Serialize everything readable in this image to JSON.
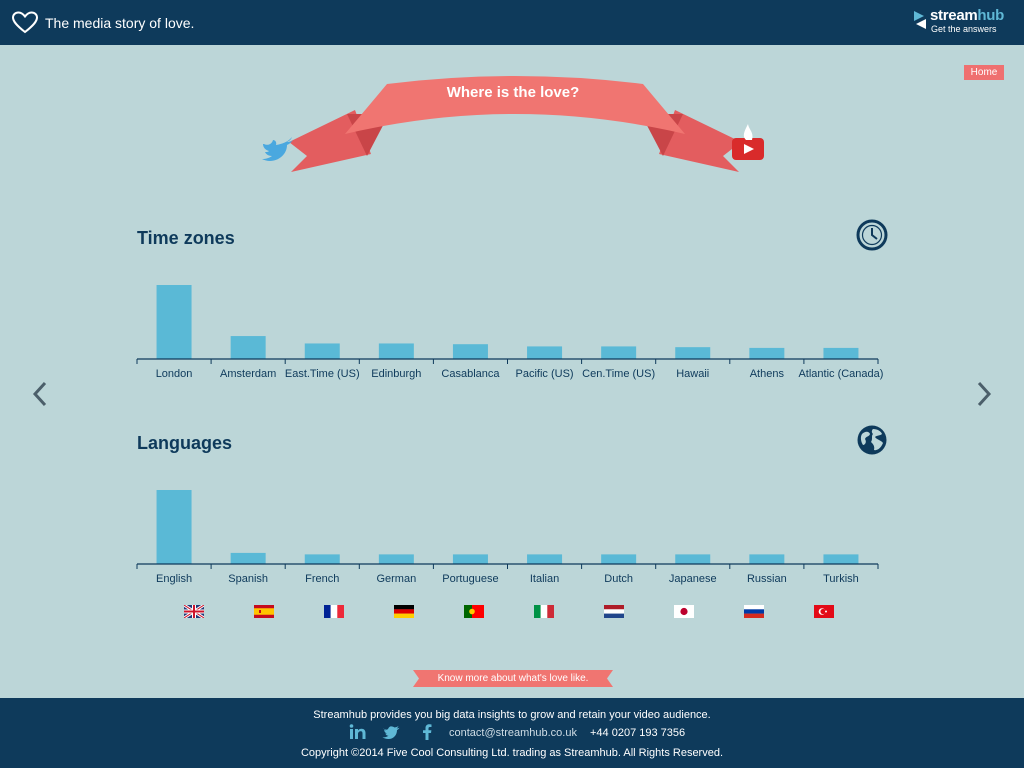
{
  "header": {
    "tagline": "The media story of love.",
    "brand_name_a": "stream",
    "brand_name_b": "hub",
    "brand_subtitle": "Get the answers"
  },
  "home_label": "Home",
  "ribbon_title": "Where is the love?",
  "time_zones": {
    "title": "Time zones",
    "icon": "clock-icon",
    "chart_data": {
      "type": "bar",
      "categories": [
        "London",
        "Amsterdam",
        "East.Time (US)",
        "Edinburgh",
        "Casablanca",
        "Pacific (US)",
        "Cen.Time (US)",
        "Hawaii",
        "Athens",
        "Atlantic (Canada)"
      ],
      "values": [
        100,
        31,
        21,
        21,
        20,
        17,
        17,
        16,
        15,
        15
      ],
      "bar_color": "#5ab9d6",
      "ylim": [
        0,
        100
      ]
    }
  },
  "languages": {
    "title": "Languages",
    "icon": "globe-icon",
    "chart_data": {
      "type": "bar",
      "categories": [
        "English",
        "Spanish",
        "French",
        "German",
        "Portuguese",
        "Italian",
        "Dutch",
        "Japanese",
        "Russian",
        "Turkish"
      ],
      "values": [
        100,
        15,
        13,
        13,
        13,
        13,
        13,
        13,
        13,
        13
      ],
      "bar_color": "#5ab9d6",
      "ylim": [
        0,
        100
      ]
    },
    "flags": [
      "uk-flag-icon",
      "spain-flag-icon",
      "france-flag-icon",
      "germany-flag-icon",
      "portugal-flag-icon",
      "italy-flag-icon",
      "netherlands-flag-icon",
      "japan-flag-icon",
      "russia-flag-icon",
      "turkey-flag-icon"
    ]
  },
  "cta_label": "Know more about what's love like.",
  "footer": {
    "line1": "Streamhub provides you big data insights to grow and retain your video audience.",
    "email": "contact@streamhub.co.uk",
    "phone": "+44 0207 193 7356",
    "copyright": "Copyright ©2014 Five Cool Consulting Ltd. trading as Streamhub. All Rights Reserved."
  },
  "colors": {
    "navy": "#0e3a5b",
    "background": "#bcd6d8",
    "accent": "#ef7070",
    "bar": "#5ab9d6"
  }
}
